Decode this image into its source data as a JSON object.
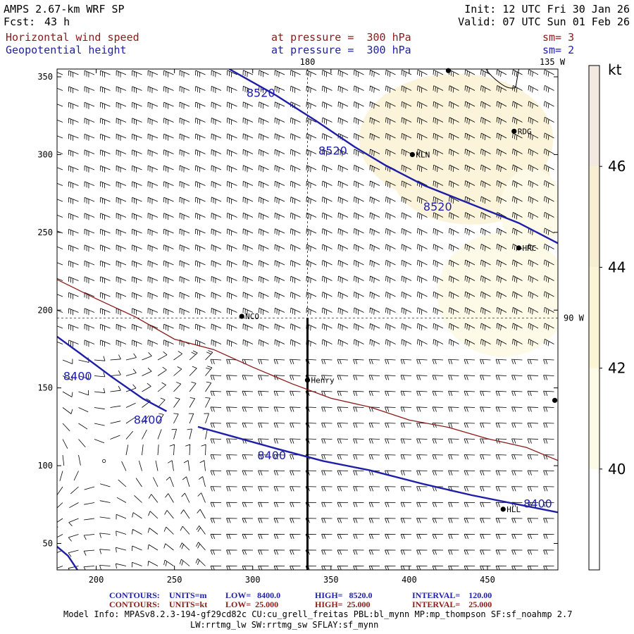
{
  "header": {
    "model_title": "AMPS 2.67-km WRF SP",
    "init": "Init: 12 UTC Fri 30 Jan 26",
    "fcst_label": "Fcst:",
    "fcst_value": "43 h",
    "valid": "Valid: 07 UTC Sun 01 Feb 26"
  },
  "fields": [
    {
      "name": "Horizontal wind speed",
      "level": "at pressure =  300 hPa",
      "smooth": "sm= 3",
      "color": "#8b1a1a"
    },
    {
      "name": "Geopotential height",
      "level": "at pressure =  300 hPa",
      "smooth": "sm= 2",
      "color": "#1e1ea8"
    }
  ],
  "map": {
    "x_axis": {
      "range": [
        175,
        495
      ],
      "ticks": [
        "200",
        "250",
        "300",
        "350",
        "400",
        "450"
      ]
    },
    "y_axis": {
      "range": [
        33,
        355
      ],
      "ticks": [
        "50",
        "100",
        "150",
        "200",
        "250",
        "300",
        "350"
      ]
    },
    "meridian_labels": {
      "top_180": "180",
      "top_135w": "135 W",
      "right_90w": "90 W"
    },
    "stations": [
      {
        "label": "RDG",
        "x": 467,
        "y": 315
      },
      {
        "label": "KLN",
        "x": 402,
        "y": 300
      },
      {
        "label": "HRC",
        "x": 470,
        "y": 240
      },
      {
        "label": "NCO",
        "x": 293,
        "y": 196
      },
      {
        "label": "Henry",
        "x": 335,
        "y": 155
      },
      {
        "label": "HLL",
        "x": 460,
        "y": 72
      },
      {
        "label": "",
        "x": 493,
        "y": 142
      },
      {
        "label": "",
        "x": 425,
        "y": 354
      }
    ],
    "height_contours": [
      {
        "value": "8520",
        "points": [
          [
            285,
            355
          ],
          [
            315,
            338
          ],
          [
            340,
            322
          ],
          [
            365,
            305
          ],
          [
            385,
            293
          ],
          [
            410,
            280
          ],
          [
            440,
            268
          ],
          [
            470,
            256
          ],
          [
            495,
            243
          ]
        ],
        "labels": [
          {
            "text": "8520",
            "x": 296,
            "y": 337
          },
          {
            "text": "8520",
            "x": 342,
            "y": 300
          },
          {
            "text": "8520",
            "x": 409,
            "y": 264
          }
        ]
      },
      {
        "value": "8400",
        "points": [
          [
            175,
            183
          ],
          [
            190,
            172
          ],
          [
            210,
            157
          ],
          [
            230,
            143
          ],
          [
            245,
            135
          ]
        ],
        "labels": [
          {
            "text": "8400",
            "x": 179,
            "y": 155
          }
        ]
      },
      {
        "value": "8400",
        "points": [
          [
            265,
            125
          ],
          [
            290,
            118
          ],
          [
            315,
            111
          ],
          [
            345,
            103
          ],
          [
            375,
            97
          ],
          [
            410,
            88
          ],
          [
            440,
            81
          ],
          [
            470,
            75
          ],
          [
            495,
            70
          ]
        ],
        "labels": [
          {
            "text": "8400",
            "x": 224,
            "y": 127
          },
          {
            "text": "8400",
            "x": 303,
            "y": 104
          },
          {
            "text": "8400",
            "x": 473,
            "y": 73
          }
        ]
      },
      {
        "value": "8400",
        "points": [
          [
            175,
            48
          ],
          [
            182,
            42
          ],
          [
            188,
            33
          ]
        ],
        "labels": []
      }
    ],
    "speed_contour": {
      "value": "25",
      "points": [
        [
          175,
          219
        ],
        [
          200,
          208
        ],
        [
          225,
          195
        ],
        [
          250,
          182
        ],
        [
          275,
          174
        ],
        [
          300,
          164
        ],
        [
          325,
          152
        ],
        [
          350,
          144
        ],
        [
          375,
          137
        ],
        [
          400,
          130
        ],
        [
          425,
          124
        ],
        [
          450,
          118
        ],
        [
          475,
          111
        ],
        [
          495,
          104
        ]
      ]
    },
    "speed_shading": [
      {
        "cx": 430,
        "cy": 310,
        "rx": 62,
        "ry": 42,
        "color": "#fbf4db"
      },
      {
        "cx": 440,
        "cy": 285,
        "rx": 50,
        "ry": 30,
        "color": "#fbf4db"
      },
      {
        "cx": 460,
        "cy": 210,
        "rx": 42,
        "ry": 40,
        "color": "#fdfae8"
      },
      {
        "cx": 478,
        "cy": 265,
        "rx": 20,
        "ry": 26,
        "color": "#fdfae8"
      }
    ],
    "cross_section": {
      "x": 335,
      "y_from": 33,
      "y_to": 195
    },
    "crosshair_y": 195,
    "calm_marker": {
      "x": 205,
      "y": 103
    }
  },
  "colorbar": {
    "unit": "kt",
    "levels": [
      "40",
      "42",
      "44",
      "46"
    ],
    "colors": [
      "#ffffff",
      "#fdfbe7",
      "#fbf5d6",
      "#f8efd2",
      "#f4e9e1"
    ]
  },
  "footer": {
    "contour_rows": [
      {
        "label": "CONTOURS:",
        "units": "UNITS=m",
        "low": "LOW=   8400.0",
        "high": "HIGH=   8520.0",
        "interval": "INTERVAL=    120.00",
        "color": "#1e1ea8"
      },
      {
        "label": "CONTOURS:",
        "units": "UNITS=kt",
        "low": "LOW=  25.000",
        "high": "HIGH=  25.000",
        "interval": "INTERVAL=    25.000",
        "color": "#8b1a1a"
      }
    ],
    "model_info_1": "Model Info: MPASv8.2.3-194-gf29cd82c CU:cu_grell_freitas PBL:bl_mynn MP:mp_thompson SF:sf_noahmp 2.7",
    "model_info_2": "LW:rrtmg_lw SW:rrtmg_sw SFLAY:sf_mynn"
  }
}
